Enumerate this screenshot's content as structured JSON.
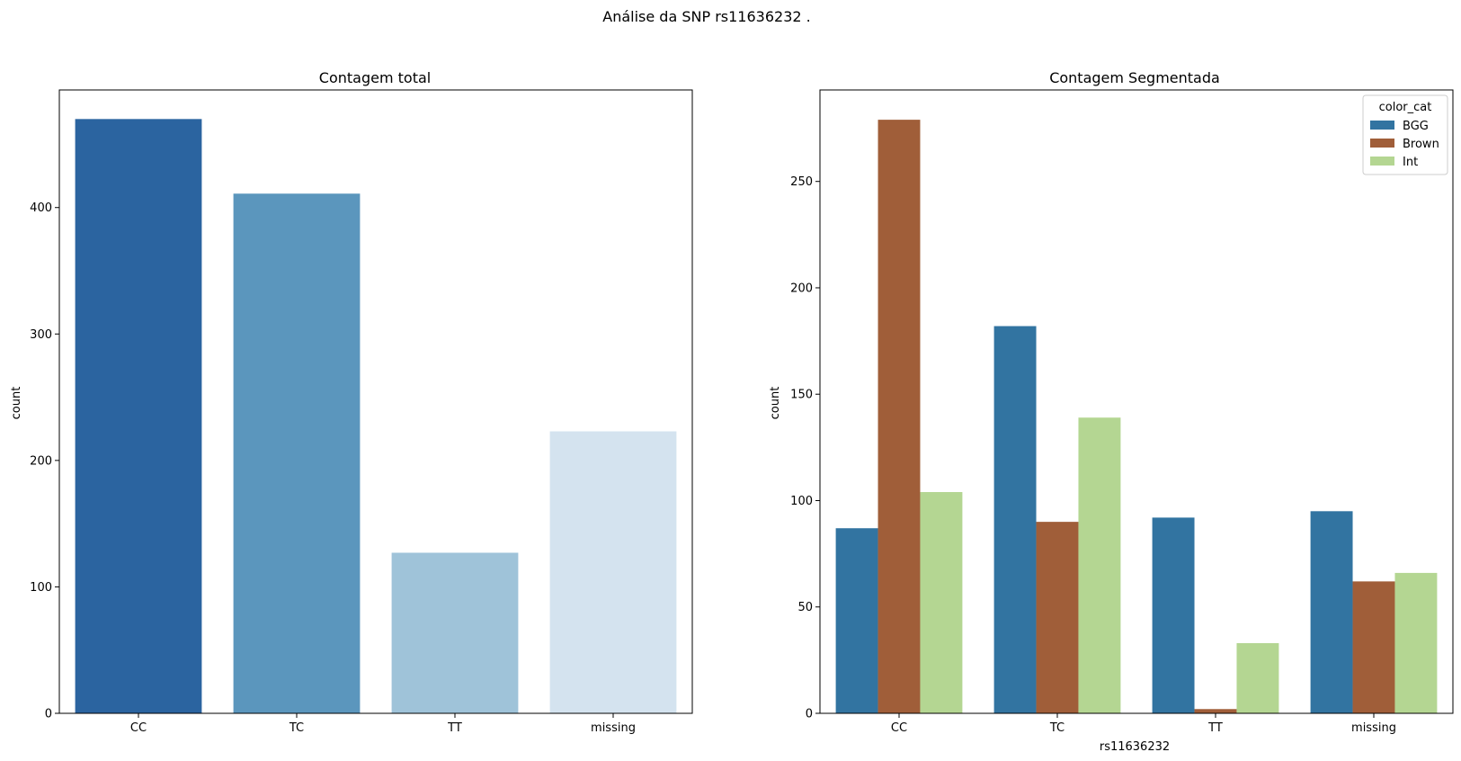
{
  "figure": {
    "suptitle": "Análise da SNP rs11636232 ."
  },
  "chart_data": [
    {
      "type": "bar",
      "title": "Contagem total",
      "xlabel": "",
      "ylabel": "count",
      "categories": [
        "CC",
        "TC",
        "TT",
        "missing"
      ],
      "values": [
        470,
        411,
        127,
        223
      ],
      "bar_colors": [
        "#2b64a0",
        "#5b96bd",
        "#9fc3d9",
        "#d4e3ef"
      ],
      "ylim": [
        0,
        493
      ],
      "yticks": [
        0,
        100,
        200,
        300,
        400
      ],
      "grid": false,
      "legend": null
    },
    {
      "type": "bar",
      "title": "Contagem Segmentada",
      "xlabel": "rs11636232",
      "ylabel": "count",
      "categories": [
        "CC",
        "TC",
        "TT",
        "missing"
      ],
      "series": [
        {
          "name": "BGG",
          "color": "#3274a1",
          "values": [
            87,
            182,
            92,
            95
          ]
        },
        {
          "name": "Brown",
          "color": "#a05e39",
          "values": [
            279,
            90,
            2,
            62
          ]
        },
        {
          "name": "Int",
          "color": "#b4d692",
          "values": [
            104,
            139,
            33,
            66
          ]
        }
      ],
      "ylim": [
        0,
        293
      ],
      "yticks": [
        0,
        50,
        100,
        150,
        200,
        250
      ],
      "grid": false,
      "legend": {
        "title": "color_cat",
        "placement": "top-right"
      }
    }
  ]
}
